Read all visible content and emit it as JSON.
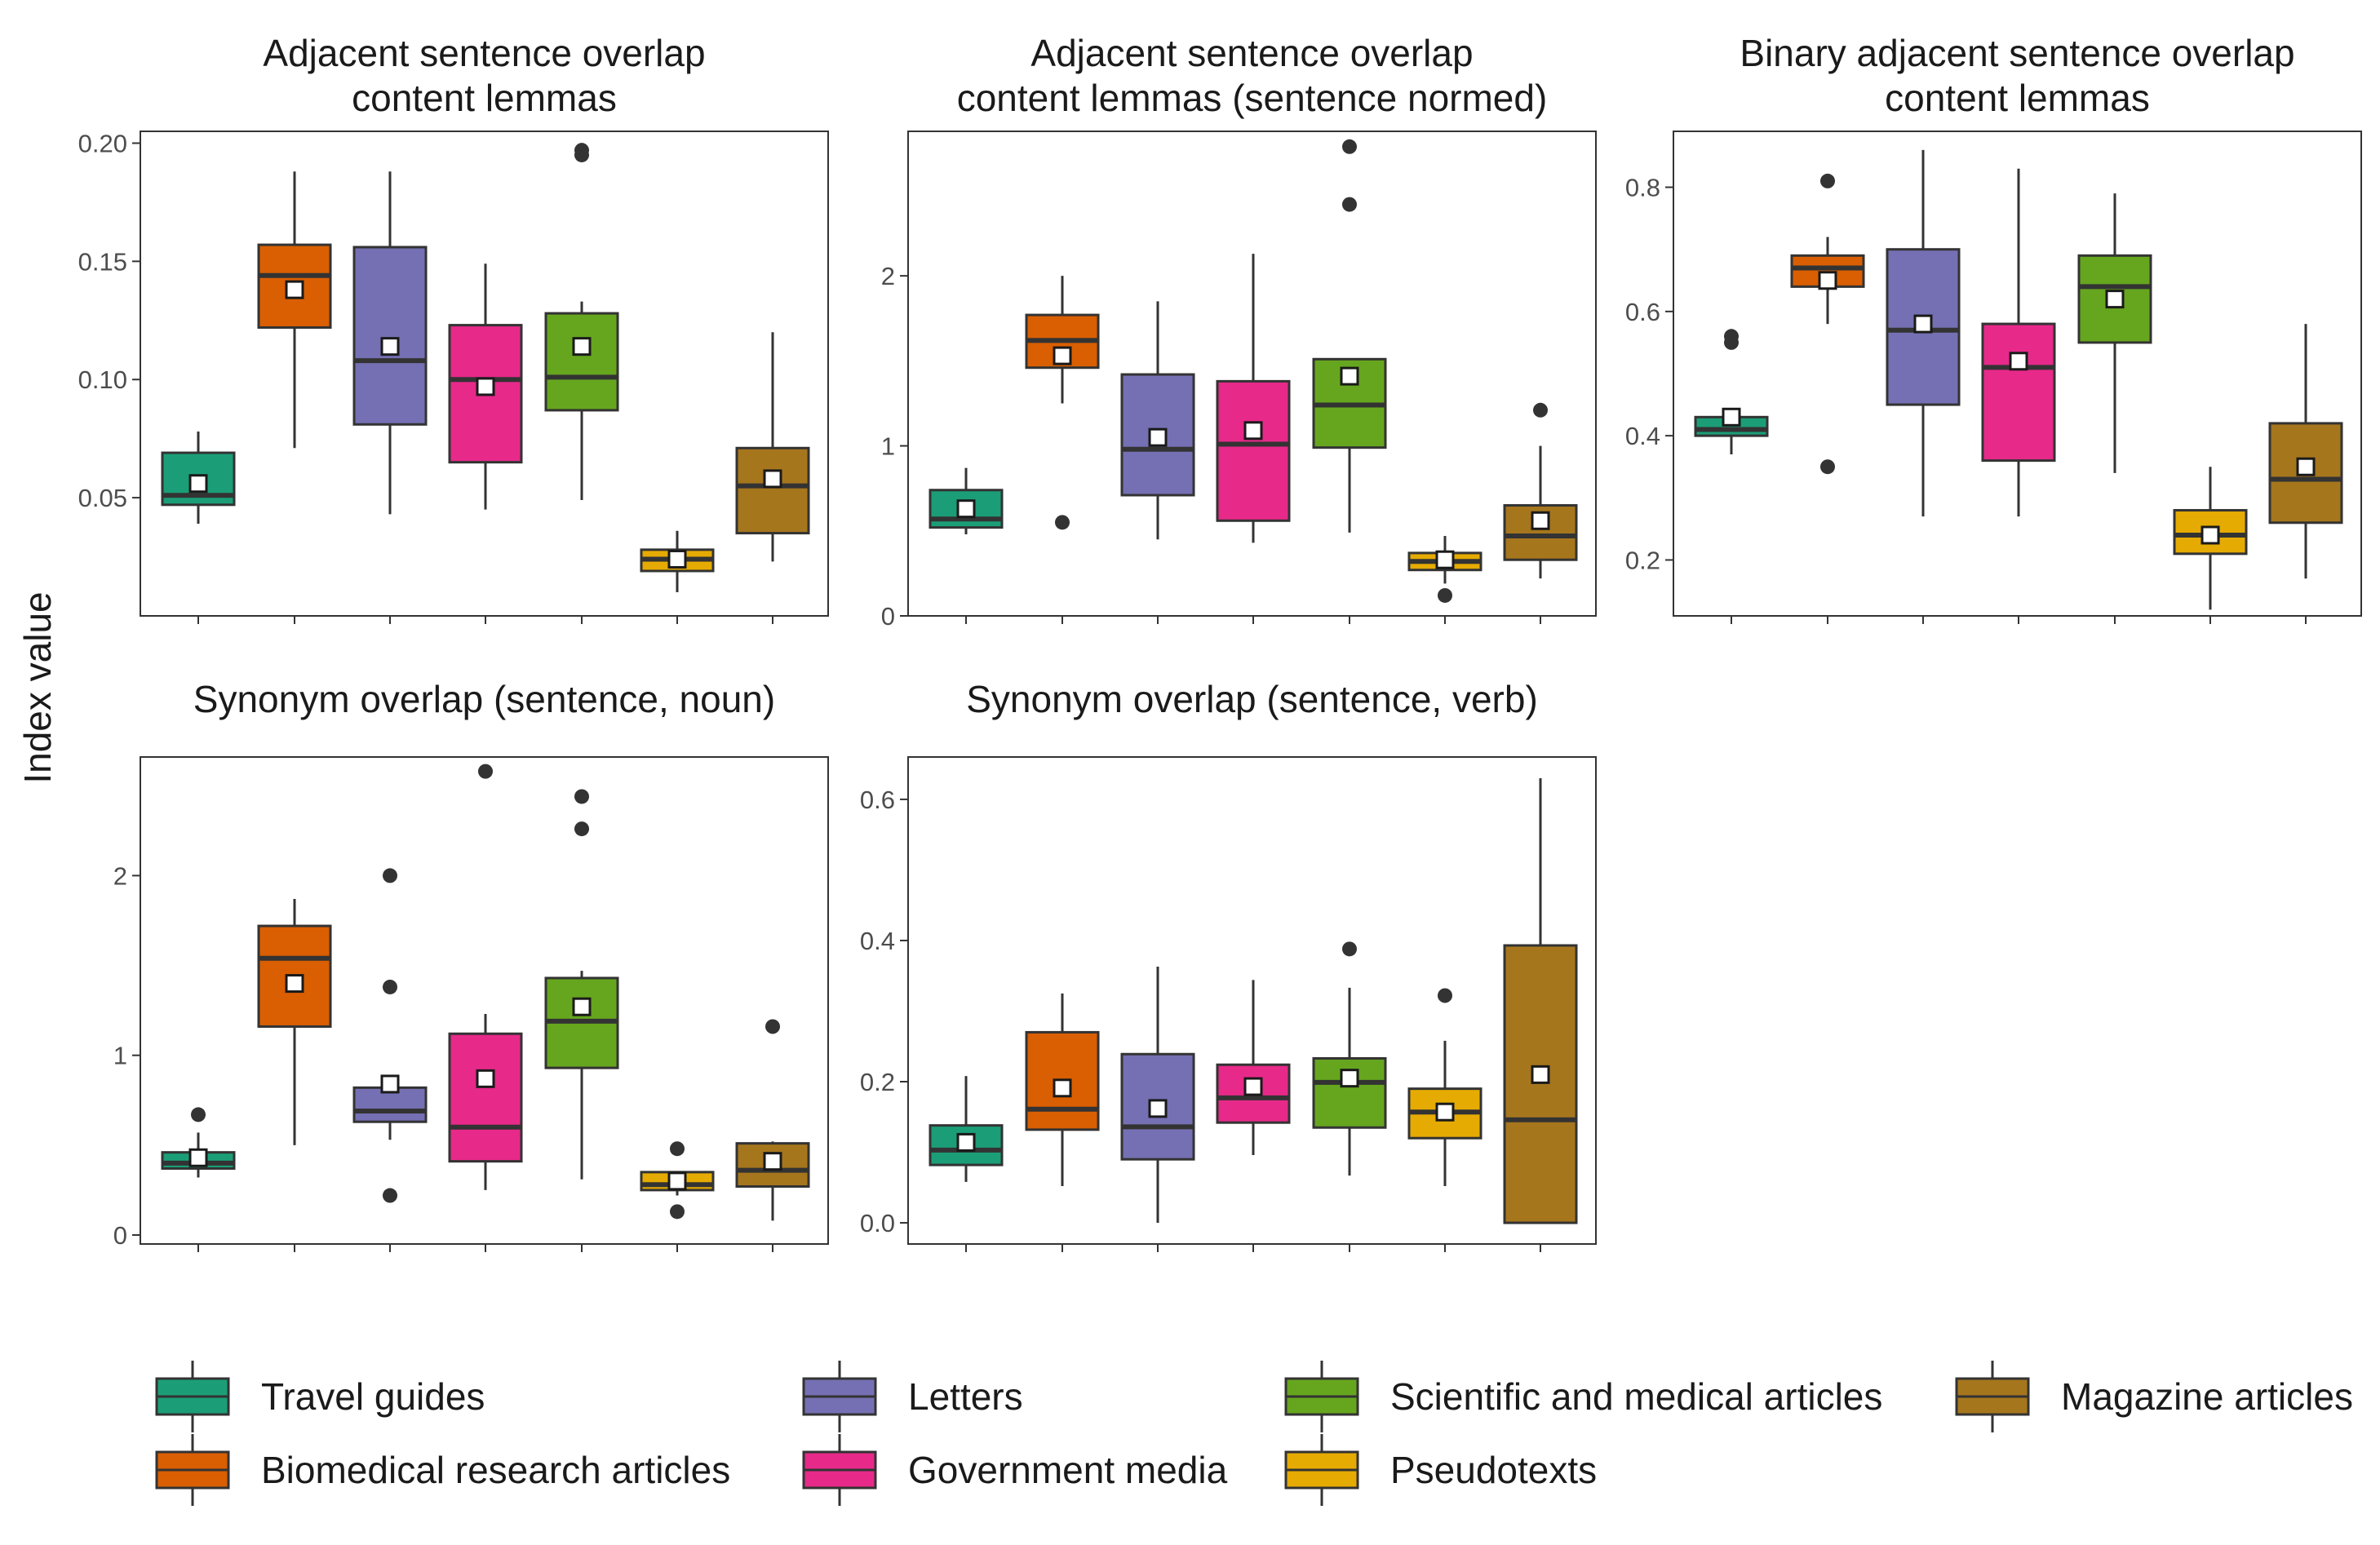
{
  "ylabel": "Index value",
  "legend": {
    "items": [
      {
        "name": "Travel guides",
        "color": "#1B9E77"
      },
      {
        "name": "Biomedical research articles",
        "color": "#D95F02"
      },
      {
        "name": "Letters",
        "color": "#7570B3"
      },
      {
        "name": "Government media",
        "color": "#E7298A"
      },
      {
        "name": "Scientific and medical articles",
        "color": "#66A61E"
      },
      {
        "name": "Pseudotexts",
        "color": "#E6AB02"
      },
      {
        "name": "Magazine articles",
        "color": "#A6761D"
      }
    ]
  },
  "chart_data": [
    {
      "type": "boxplot",
      "title": [
        "Adjacent sentence overlap",
        "content lemmas"
      ],
      "ylim": [
        0,
        0.205
      ],
      "ticks": [
        0.05,
        0.1,
        0.15,
        0.2
      ],
      "tick_labels": [
        "0.05",
        "0.10",
        "0.15",
        "0.20"
      ],
      "boxes": [
        {
          "q1": 0.047,
          "median": 0.051,
          "q3": 0.069,
          "low": 0.039,
          "high": 0.078,
          "mean": 0.056,
          "outliers": []
        },
        {
          "q1": 0.122,
          "median": 0.144,
          "q3": 0.157,
          "low": 0.071,
          "high": 0.188,
          "mean": 0.138,
          "outliers": []
        },
        {
          "q1": 0.081,
          "median": 0.108,
          "q3": 0.156,
          "low": 0.043,
          "high": 0.188,
          "mean": 0.114,
          "outliers": []
        },
        {
          "q1": 0.065,
          "median": 0.1,
          "q3": 0.123,
          "low": 0.045,
          "high": 0.149,
          "mean": 0.097,
          "outliers": []
        },
        {
          "q1": 0.087,
          "median": 0.101,
          "q3": 0.128,
          "low": 0.049,
          "high": 0.133,
          "mean": 0.114,
          "outliers": [
            0.195,
            0.197
          ]
        },
        {
          "q1": 0.019,
          "median": 0.024,
          "q3": 0.028,
          "low": 0.01,
          "high": 0.036,
          "mean": 0.024,
          "outliers": []
        },
        {
          "q1": 0.035,
          "median": 0.055,
          "q3": 0.071,
          "low": 0.023,
          "high": 0.12,
          "mean": 0.058,
          "outliers": []
        }
      ]
    },
    {
      "type": "boxplot",
      "title": [
        "Adjacent sentence overlap",
        "content lemmas (sentence normed)"
      ],
      "ylim": [
        0,
        2.85
      ],
      "ticks": [
        0,
        1,
        2
      ],
      "tick_labels": [
        "0",
        "1",
        "2"
      ],
      "boxes": [
        {
          "q1": 0.52,
          "median": 0.57,
          "q3": 0.74,
          "low": 0.48,
          "high": 0.87,
          "mean": 0.63,
          "outliers": []
        },
        {
          "q1": 1.46,
          "median": 1.62,
          "q3": 1.77,
          "low": 1.25,
          "high": 2.0,
          "mean": 1.53,
          "outliers": [
            0.55
          ]
        },
        {
          "q1": 0.71,
          "median": 0.98,
          "q3": 1.42,
          "low": 0.45,
          "high": 1.85,
          "mean": 1.05,
          "outliers": []
        },
        {
          "q1": 0.56,
          "median": 1.01,
          "q3": 1.38,
          "low": 0.43,
          "high": 2.13,
          "mean": 1.09,
          "outliers": []
        },
        {
          "q1": 0.99,
          "median": 1.24,
          "q3": 1.51,
          "low": 0.49,
          "high": 1.51,
          "mean": 1.41,
          "outliers": [
            2.42,
            2.76
          ]
        },
        {
          "q1": 0.27,
          "median": 0.32,
          "q3": 0.37,
          "low": 0.19,
          "high": 0.47,
          "mean": 0.33,
          "outliers": [
            0.12
          ]
        },
        {
          "q1": 0.33,
          "median": 0.47,
          "q3": 0.65,
          "low": 0.22,
          "high": 1.0,
          "mean": 0.56,
          "outliers": [
            1.21
          ]
        }
      ]
    },
    {
      "type": "boxplot",
      "title": [
        "Binary adjacent sentence overlap",
        "content lemmas"
      ],
      "ylim": [
        0.11,
        0.89
      ],
      "ticks": [
        0.2,
        0.4,
        0.6,
        0.8
      ],
      "tick_labels": [
        "0.2",
        "0.4",
        "0.6",
        "0.8"
      ],
      "boxes": [
        {
          "q1": 0.4,
          "median": 0.41,
          "q3": 0.43,
          "low": 0.37,
          "high": 0.44,
          "mean": 0.43,
          "outliers": [
            0.55,
            0.56
          ]
        },
        {
          "q1": 0.64,
          "median": 0.67,
          "q3": 0.69,
          "low": 0.58,
          "high": 0.72,
          "mean": 0.65,
          "outliers": [
            0.81,
            0.35
          ]
        },
        {
          "q1": 0.45,
          "median": 0.57,
          "q3": 0.7,
          "low": 0.27,
          "high": 0.86,
          "mean": 0.58,
          "outliers": []
        },
        {
          "q1": 0.36,
          "median": 0.51,
          "q3": 0.58,
          "low": 0.27,
          "high": 0.83,
          "mean": 0.52,
          "outliers": []
        },
        {
          "q1": 0.55,
          "median": 0.64,
          "q3": 0.69,
          "low": 0.34,
          "high": 0.79,
          "mean": 0.62,
          "outliers": []
        },
        {
          "q1": 0.21,
          "median": 0.24,
          "q3": 0.28,
          "low": 0.12,
          "high": 0.35,
          "mean": 0.24,
          "outliers": []
        },
        {
          "q1": 0.26,
          "median": 0.33,
          "q3": 0.42,
          "low": 0.17,
          "high": 0.58,
          "mean": 0.35,
          "outliers": []
        }
      ]
    },
    {
      "type": "boxplot",
      "title": [
        "Synonym overlap (sentence, noun)"
      ],
      "ylim": [
        -0.05,
        2.66
      ],
      "ticks": [
        0,
        1,
        2
      ],
      "tick_labels": [
        "0",
        "1",
        "2"
      ],
      "boxes": [
        {
          "q1": 0.37,
          "median": 0.4,
          "q3": 0.46,
          "low": 0.32,
          "high": 0.57,
          "mean": 0.43,
          "outliers": [
            0.67
          ]
        },
        {
          "q1": 1.16,
          "median": 1.54,
          "q3": 1.72,
          "low": 0.5,
          "high": 1.87,
          "mean": 1.4,
          "outliers": []
        },
        {
          "q1": 0.63,
          "median": 0.69,
          "q3": 0.82,
          "low": 0.53,
          "high": 0.82,
          "mean": 0.84,
          "outliers": [
            2.0,
            1.38,
            0.22
          ]
        },
        {
          "q1": 0.41,
          "median": 0.6,
          "q3": 1.12,
          "low": 0.25,
          "high": 1.23,
          "mean": 0.87,
          "outliers": [
            2.58
          ]
        },
        {
          "q1": 0.93,
          "median": 1.19,
          "q3": 1.43,
          "low": 0.31,
          "high": 1.47,
          "mean": 1.27,
          "outliers": [
            2.44,
            2.26
          ]
        },
        {
          "q1": 0.25,
          "median": 0.28,
          "q3": 0.35,
          "low": 0.22,
          "high": 0.35,
          "mean": 0.3,
          "outliers": [
            0.48,
            0.13
          ]
        },
        {
          "q1": 0.27,
          "median": 0.36,
          "q3": 0.51,
          "low": 0.08,
          "high": 0.52,
          "mean": 0.41,
          "outliers": [
            1.16
          ]
        }
      ]
    },
    {
      "type": "boxplot",
      "title": [
        "Synonym overlap (sentence, verb)"
      ],
      "ylim": [
        -0.03,
        0.66
      ],
      "ticks": [
        0.0,
        0.2,
        0.4,
        0.6
      ],
      "tick_labels": [
        "0.0",
        "0.2",
        "0.4",
        "0.6"
      ],
      "boxes": [
        {
          "q1": 0.082,
          "median": 0.103,
          "q3": 0.138,
          "low": 0.058,
          "high": 0.208,
          "mean": 0.114,
          "outliers": []
        },
        {
          "q1": 0.132,
          "median": 0.161,
          "q3": 0.27,
          "low": 0.052,
          "high": 0.325,
          "mean": 0.191,
          "outliers": []
        },
        {
          "q1": 0.09,
          "median": 0.136,
          "q3": 0.239,
          "low": 0.0,
          "high": 0.363,
          "mean": 0.162,
          "outliers": []
        },
        {
          "q1": 0.142,
          "median": 0.177,
          "q3": 0.224,
          "low": 0.096,
          "high": 0.344,
          "mean": 0.193,
          "outliers": []
        },
        {
          "q1": 0.135,
          "median": 0.199,
          "q3": 0.233,
          "low": 0.067,
          "high": 0.333,
          "mean": 0.205,
          "outliers": [
            0.388
          ]
        },
        {
          "q1": 0.12,
          "median": 0.157,
          "q3": 0.19,
          "low": 0.052,
          "high": 0.258,
          "mean": 0.157,
          "outliers": [
            0.322
          ]
        },
        {
          "q1": 0.0,
          "median": 0.146,
          "q3": 0.393,
          "low": 0.0,
          "high": 0.63,
          "mean": 0.21,
          "outliers": []
        }
      ]
    }
  ]
}
